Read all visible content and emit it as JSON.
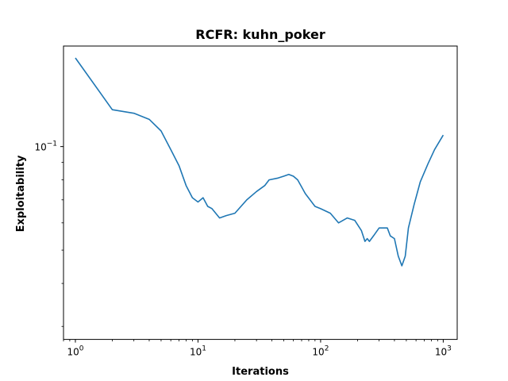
{
  "chart_data": {
    "type": "line",
    "title": "RCFR: kuhn_poker",
    "xlabel": "Iterations",
    "ylabel": "Exploitability",
    "xscale": "log",
    "yscale": "log",
    "xlim": [
      0.8,
      1300
    ],
    "ylim": [
      0.0275,
      0.196
    ],
    "grid": false,
    "line_color": "#1f77b4",
    "x_ticks": [
      {
        "base": "10",
        "exp": "0"
      },
      {
        "base": "10",
        "exp": "1"
      },
      {
        "base": "10",
        "exp": "2"
      },
      {
        "base": "10",
        "exp": "3"
      }
    ],
    "y_ticks": [
      {
        "base": "10",
        "exp": "−1"
      }
    ],
    "series": [
      {
        "x": [
          1,
          2,
          3,
          4,
          5,
          6,
          7,
          8,
          9,
          10,
          11,
          12,
          13,
          15,
          17,
          20,
          25,
          30,
          35,
          38,
          45,
          50,
          55,
          60,
          65,
          75,
          90,
          100,
          120,
          140,
          165,
          190,
          215,
          230,
          240,
          250,
          270,
          300,
          330,
          350,
          370,
          400,
          430,
          460,
          490,
          520,
          580,
          650,
          750,
          850,
          1000
        ],
        "y": [
          0.181,
          0.128,
          0.125,
          0.12,
          0.111,
          0.098,
          0.088,
          0.077,
          0.071,
          0.069,
          0.071,
          0.067,
          0.066,
          0.062,
          0.063,
          0.064,
          0.07,
          0.074,
          0.077,
          0.08,
          0.081,
          0.082,
          0.083,
          0.082,
          0.08,
          0.073,
          0.067,
          0.066,
          0.064,
          0.06,
          0.062,
          0.061,
          0.057,
          0.053,
          0.054,
          0.053,
          0.055,
          0.058,
          0.058,
          0.058,
          0.055,
          0.054,
          0.048,
          0.045,
          0.048,
          0.058,
          0.068,
          0.079,
          0.089,
          0.098,
          0.108
        ]
      }
    ]
  }
}
